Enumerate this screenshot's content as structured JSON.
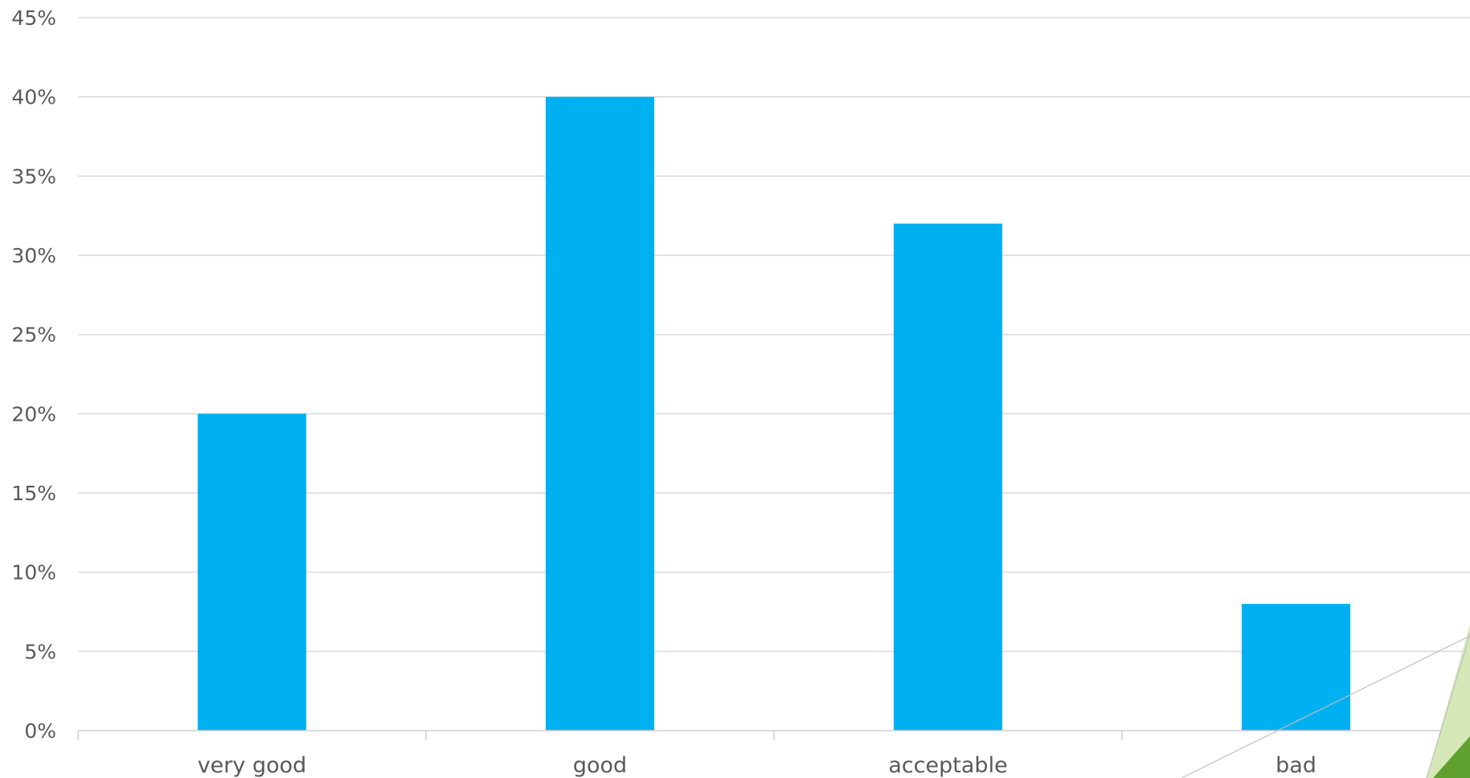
{
  "chart_data": {
    "type": "bar",
    "title": "",
    "xlabel": "",
    "ylabel": "",
    "categories": [
      "very good",
      "good",
      "acceptable",
      "bad"
    ],
    "values": [
      20,
      40,
      32,
      8
    ],
    "ylim": [
      0,
      45
    ],
    "y_ticks": [
      0,
      5,
      10,
      15,
      20,
      25,
      30,
      35,
      40,
      45
    ],
    "y_tick_format": "percent",
    "grid": true,
    "legend": "none",
    "bar_color": "#00B0F0"
  },
  "decoration": {
    "accent_light": "#D6E8B8",
    "accent_dark": "#5FA02E"
  }
}
